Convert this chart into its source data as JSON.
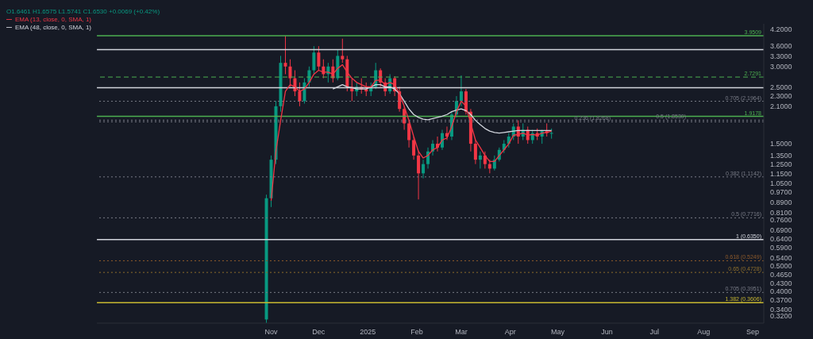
{
  "chart_data": {
    "type": "candlestick",
    "log": true,
    "grid": false,
    "legend": "top left",
    "marker": "none",
    "annotations": [
      "O1.6461 H1.6575 L1.5741 C1.6530 +0.0069 (+0.42%)"
    ],
    "x": [
      "2024-10-29",
      "2024-11-01",
      "2024-11-04",
      "2024-11-07",
      "2024-11-10",
      "2024-11-13",
      "2024-11-16",
      "2024-11-19",
      "2024-11-22",
      "2024-11-25",
      "2024-11-28",
      "2024-12-01",
      "2024-12-04",
      "2024-12-07",
      "2024-12-10",
      "2024-12-13",
      "2024-12-16",
      "2024-12-19",
      "2024-12-22",
      "2024-12-25",
      "2024-12-28",
      "2024-12-31",
      "2025-01-03",
      "2025-01-06",
      "2025-01-09",
      "2025-01-12",
      "2025-01-15",
      "2025-01-18",
      "2025-01-21",
      "2025-01-24",
      "2025-01-27",
      "2025-01-30",
      "2025-02-02",
      "2025-02-05",
      "2025-02-08",
      "2025-02-11",
      "2025-02-14",
      "2025-02-17",
      "2025-02-20",
      "2025-02-23",
      "2025-02-26",
      "2025-03-01",
      "2025-03-04",
      "2025-03-07",
      "2025-03-10",
      "2025-03-13",
      "2025-03-16",
      "2025-03-19",
      "2025-03-22",
      "2025-03-25",
      "2025-03-28",
      "2025-03-31",
      "2025-04-03",
      "2025-04-06",
      "2025-04-09",
      "2025-04-12",
      "2025-04-15",
      "2025-04-18",
      "2025-04-21",
      "2025-04-24",
      "2025-04-27"
    ],
    "ohlc": [
      [
        0.31,
        0.95,
        0.3,
        0.92
      ],
      [
        0.92,
        1.35,
        0.85,
        1.3
      ],
      [
        1.3,
        2.2,
        1.25,
        2.1
      ],
      [
        2.1,
        3.3,
        2.0,
        3.1
      ],
      [
        3.1,
        3.95,
        2.8,
        3.0
      ],
      [
        3.0,
        3.2,
        2.5,
        2.7
      ],
      [
        2.7,
        2.9,
        2.3,
        2.4
      ],
      [
        2.4,
        2.6,
        2.1,
        2.2
      ],
      [
        2.2,
        2.7,
        2.15,
        2.6
      ],
      [
        2.6,
        3.0,
        2.5,
        2.9
      ],
      [
        2.9,
        3.6,
        2.8,
        3.4
      ],
      [
        3.4,
        3.6,
        2.9,
        3.0
      ],
      [
        3.0,
        3.2,
        2.7,
        2.8
      ],
      [
        2.8,
        3.1,
        2.6,
        3.0
      ],
      [
        3.0,
        3.2,
        2.6,
        2.7
      ],
      [
        2.7,
        3.5,
        2.65,
        3.3
      ],
      [
        3.3,
        3.85,
        3.1,
        3.2
      ],
      [
        3.2,
        3.3,
        2.4,
        2.5
      ],
      [
        2.5,
        2.7,
        2.2,
        2.4
      ],
      [
        2.4,
        2.6,
        2.3,
        2.5
      ],
      [
        2.5,
        2.7,
        2.35,
        2.45
      ],
      [
        2.45,
        2.6,
        2.3,
        2.4
      ],
      [
        2.4,
        2.6,
        2.3,
        2.5
      ],
      [
        2.5,
        3.1,
        2.45,
        2.9
      ],
      [
        2.9,
        2.95,
        2.5,
        2.6
      ],
      [
        2.6,
        2.7,
        2.3,
        2.4
      ],
      [
        2.4,
        2.8,
        2.35,
        2.7
      ],
      [
        2.7,
        2.75,
        2.3,
        2.4
      ],
      [
        2.4,
        2.5,
        2.0,
        2.05
      ],
      [
        2.05,
        2.1,
        1.7,
        1.8
      ],
      [
        1.8,
        1.85,
        1.45,
        1.55
      ],
      [
        1.55,
        1.6,
        1.3,
        1.35
      ],
      [
        1.35,
        1.4,
        0.91,
        1.15
      ],
      [
        1.15,
        1.3,
        1.1,
        1.25
      ],
      [
        1.25,
        1.45,
        1.2,
        1.4
      ],
      [
        1.4,
        1.55,
        1.35,
        1.5
      ],
      [
        1.5,
        1.6,
        1.4,
        1.45
      ],
      [
        1.45,
        1.7,
        1.42,
        1.65
      ],
      [
        1.65,
        1.75,
        1.55,
        1.6
      ],
      [
        1.6,
        2.0,
        1.55,
        1.95
      ],
      [
        1.95,
        2.3,
        1.9,
        2.2
      ],
      [
        2.2,
        2.77,
        2.1,
        2.4
      ],
      [
        2.4,
        2.45,
        1.95,
        2.0
      ],
      [
        2.0,
        2.05,
        1.4,
        1.5
      ],
      [
        1.5,
        1.55,
        1.25,
        1.3
      ],
      [
        1.3,
        1.4,
        1.2,
        1.35
      ],
      [
        1.35,
        1.4,
        1.2,
        1.25
      ],
      [
        1.25,
        1.3,
        1.15,
        1.2
      ],
      [
        1.2,
        1.35,
        1.18,
        1.3
      ],
      [
        1.3,
        1.45,
        1.28,
        1.42
      ],
      [
        1.42,
        1.55,
        1.38,
        1.5
      ],
      [
        1.5,
        1.65,
        1.45,
        1.6
      ],
      [
        1.6,
        1.8,
        1.55,
        1.75
      ],
      [
        1.75,
        1.85,
        1.5,
        1.6
      ],
      [
        1.6,
        1.8,
        1.55,
        1.7
      ],
      [
        1.7,
        1.75,
        1.5,
        1.55
      ],
      [
        1.55,
        1.7,
        1.5,
        1.65
      ],
      [
        1.65,
        1.72,
        1.55,
        1.6
      ],
      [
        1.6,
        1.7,
        1.5,
        1.68
      ],
      [
        1.68,
        1.8,
        1.6,
        1.65
      ],
      [
        1.65,
        1.72,
        1.57,
        1.653
      ]
    ],
    "series": [
      {
        "type": "line",
        "name": "EMA (48, close, 0, SMA, 1)",
        "color": "#d1d4dc",
        "values": [
          null,
          null,
          null,
          null,
          null,
          null,
          null,
          null,
          null,
          null,
          null,
          null,
          null,
          null,
          2.45,
          2.5,
          2.55,
          2.5,
          2.48,
          2.45,
          2.45,
          2.45,
          2.5,
          2.55,
          2.55,
          2.5,
          2.5,
          2.45,
          2.35,
          2.2,
          2.05,
          1.95,
          1.9,
          1.87,
          1.86,
          1.88,
          1.9,
          1.92,
          1.95,
          2.0,
          2.03,
          2.05,
          2.02,
          1.95,
          1.85,
          1.78,
          1.72,
          1.68,
          1.66,
          1.65,
          1.66,
          1.67,
          1.68,
          1.69,
          1.69,
          1.69,
          1.69,
          1.69,
          1.69,
          1.69,
          1.689
        ]
      },
      {
        "type": "line",
        "name": "EMA (13, close, 0, SMA, 1)",
        "color": "#f23645",
        "values": [
          null,
          0.9,
          1.4,
          1.85,
          2.4,
          2.55,
          2.5,
          2.4,
          2.45,
          2.6,
          2.8,
          2.9,
          2.85,
          2.85,
          2.8,
          2.95,
          3.05,
          2.85,
          2.7,
          2.6,
          2.55,
          2.5,
          2.5,
          2.65,
          2.65,
          2.55,
          2.6,
          2.55,
          2.35,
          2.1,
          1.85,
          1.6,
          1.4,
          1.32,
          1.35,
          1.42,
          1.45,
          1.55,
          1.58,
          1.75,
          2.0,
          2.2,
          2.1,
          1.8,
          1.55,
          1.45,
          1.35,
          1.28,
          1.28,
          1.35,
          1.42,
          1.5,
          1.62,
          1.63,
          1.65,
          1.62,
          1.63,
          1.62,
          1.65,
          1.66,
          1.681
        ]
      }
    ],
    "xlim": [
      "2024-07-14",
      "2025-09-08"
    ],
    "xticks": [
      {
        "value": "2024-11-01",
        "label": "Nov"
      },
      {
        "value": "2024-12-01",
        "label": "Dec"
      },
      {
        "value": "2025-01-01",
        "label": "2025"
      },
      {
        "value": "2025-02-01",
        "label": "Feb"
      },
      {
        "value": "2025-03-01",
        "label": "Mar"
      },
      {
        "value": "2025-04-01",
        "label": "Apr"
      },
      {
        "value": "2025-05-01",
        "label": "May"
      },
      {
        "value": "2025-06-01",
        "label": "Jun"
      },
      {
        "value": "2025-07-01",
        "label": "Jul"
      },
      {
        "value": "2025-08-01",
        "label": "Aug"
      },
      {
        "value": "2025-09-01",
        "label": "Sep"
      }
    ],
    "ylim": [
      0.3,
      4.4
    ],
    "yticks": [
      {
        "value": 4.2,
        "label": "4.2000"
      },
      {
        "value": 3.6,
        "label": "3.6000"
      },
      {
        "value": 3.3,
        "label": "3.3000"
      },
      {
        "value": 3.0,
        "label": "3.0000"
      },
      {
        "value": 2.5,
        "label": "2.5000"
      },
      {
        "value": 2.3,
        "label": "2.3000"
      },
      {
        "value": 2.1,
        "label": "2.1000"
      },
      {
        "value": 1.5,
        "label": "1.5000"
      },
      {
        "value": 1.35,
        "label": "1.3500"
      },
      {
        "value": 1.25,
        "label": "1.2500"
      },
      {
        "value": 1.15,
        "label": "1.1500"
      },
      {
        "value": 1.05,
        "label": "1.0500"
      },
      {
        "value": 0.97,
        "label": "0.9700"
      },
      {
        "value": 0.89,
        "label": "0.8900"
      },
      {
        "value": 0.81,
        "label": "0.8100"
      },
      {
        "value": 0.76,
        "label": "0.7600"
      },
      {
        "value": 0.69,
        "label": "0.6900"
      },
      {
        "value": 0.64,
        "label": "0.6400"
      },
      {
        "value": 0.59,
        "label": "0.5900"
      },
      {
        "value": 0.54,
        "label": "0.5400"
      },
      {
        "value": 0.5,
        "label": "0.5000"
      },
      {
        "value": 0.465,
        "label": "0.4650"
      },
      {
        "value": 0.43,
        "label": "0.4300"
      },
      {
        "value": 0.4,
        "label": "0.4000"
      },
      {
        "value": 0.37,
        "label": "0.3700"
      },
      {
        "value": 0.34,
        "label": "0.3400"
      },
      {
        "value": 0.32,
        "label": "0.3200"
      }
    ],
    "ref_lines": [
      {
        "axis": "y",
        "value": 3.9509,
        "label": "3.9509",
        "color": "#4caf50",
        "line_style": "solid"
      },
      {
        "axis": "y",
        "value": 3.49,
        "label": null,
        "color": "#d1d4dc",
        "line_style": "solid"
      },
      {
        "axis": "y",
        "value": 2.7291,
        "label": "2.7291",
        "color": "#4caf50",
        "line_style": "dashed"
      },
      {
        "axis": "y",
        "value": 2.48,
        "label": null,
        "color": "#d1d4dc",
        "line_style": "solid"
      },
      {
        "axis": "y",
        "value": 2.1964,
        "label": "0.705 (2.1964)",
        "color": "#787b86",
        "line_style": "dotted"
      },
      {
        "axis": "y",
        "value": 1.9178,
        "label": "1.9178",
        "color": "#4caf50",
        "line_style": "solid"
      },
      {
        "axis": "y",
        "value": 1.853,
        "label": "0.5 (1.8530)",
        "color": "#787b86",
        "line_style": "dotted"
      },
      {
        "axis": "y",
        "value": 1.8268,
        "label": "0.236 (1.8268)",
        "color": "#787b86",
        "line_style": "dotted"
      },
      {
        "axis": "y",
        "value": 1.1142,
        "label": "0.382 (1.1142)",
        "color": "#787b86",
        "line_style": "dotted"
      },
      {
        "axis": "y",
        "value": 0.7716,
        "label": "0.5 (0.7716)",
        "color": "#787b86",
        "line_style": "dotted"
      },
      {
        "axis": "y",
        "value": 0.635,
        "label": "1 (0.6350)",
        "color": "#d1d4dc",
        "line_style": "solid"
      },
      {
        "axis": "y",
        "value": 0.5249,
        "label": "0.618 (0.5249)",
        "color": "#8d5a2b",
        "line_style": "dotted"
      },
      {
        "axis": "y",
        "value": 0.4728,
        "label": "0.65 (0.4728)",
        "color": "#8d6e2b",
        "line_style": "dotted"
      },
      {
        "axis": "y",
        "value": 0.3951,
        "label": "0.705 (0.3951)",
        "color": "#787b86",
        "line_style": "dotted"
      },
      {
        "axis": "y",
        "value": 0.3606,
        "label": "1.382 (0.3606)",
        "color": "#c8b830",
        "line_style": "solid"
      }
    ]
  }
}
